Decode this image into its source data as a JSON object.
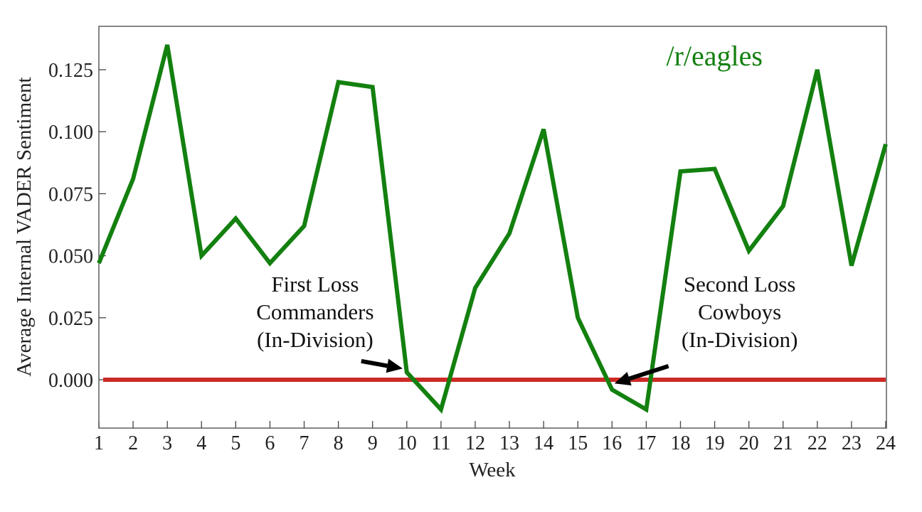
{
  "chart_data": {
    "type": "line",
    "title": "",
    "xlabel": "Week",
    "ylabel": "Average Internal VADER Sentiment",
    "x": [
      1,
      2,
      3,
      4,
      5,
      6,
      7,
      8,
      9,
      10,
      11,
      12,
      13,
      14,
      15,
      16,
      17,
      18,
      19,
      20,
      21,
      22,
      23,
      24
    ],
    "x_tick_labels": [
      "1",
      "2",
      "3",
      "4",
      "5",
      "6",
      "7",
      "8",
      "9",
      "10",
      "11",
      "12",
      "13",
      "14",
      "15",
      "16",
      "17",
      "18",
      "19",
      "20",
      "21",
      "22",
      "23",
      "24"
    ],
    "y_ticks": [
      0.0,
      0.025,
      0.05,
      0.075,
      0.1,
      0.125
    ],
    "y_tick_labels": [
      "0.000",
      "0.025",
      "0.050",
      "0.075",
      "0.100",
      "0.125"
    ],
    "xlim": [
      1,
      24
    ],
    "ylim": [
      -0.0195,
      0.1425
    ],
    "grid": false,
    "series": [
      {
        "name": "/r/eagles",
        "color": "#13800f",
        "values": [
          0.047,
          0.081,
          0.135,
          0.05,
          0.065,
          0.047,
          0.062,
          0.12,
          0.118,
          0.003,
          -0.012,
          0.037,
          0.059,
          0.101,
          0.025,
          -0.004,
          -0.012,
          0.084,
          0.085,
          0.052,
          0.07,
          0.125,
          0.046,
          0.095
        ]
      }
    ],
    "reference_line": {
      "y": 0.0,
      "color": "#cc2a26"
    },
    "annotations": [
      {
        "lines": [
          "First Loss",
          "Commanders",
          "(In-Division)"
        ],
        "target_x": 10,
        "target_y": 0.003,
        "arrow_from_x": 8.67,
        "arrow_from_y": 0.0075,
        "arrow_to_x": 9.88,
        "arrow_to_y": 0.0045,
        "text_center_x": 7.32,
        "text_top_y": 0.0355
      },
      {
        "lines": [
          "Second Loss",
          "Cowboys",
          "(In-Division)"
        ],
        "target_x": 16,
        "target_y": -0.004,
        "arrow_from_x": 17.65,
        "arrow_from_y": 0.0055,
        "arrow_to_x": 16.07,
        "arrow_to_y": -0.0015,
        "text_center_x": 19.73,
        "text_top_y": 0.0355
      }
    ],
    "series_label": {
      "text": "/r/eagles",
      "color": "#13800f",
      "position": "top-right"
    }
  }
}
